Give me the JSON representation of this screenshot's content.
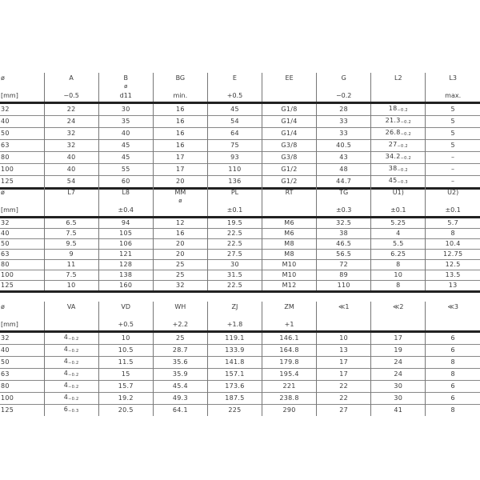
{
  "tables": [
    {
      "headers": [
        {
          "name": "ø",
          "sym": "",
          "tol": "[mm]"
        },
        {
          "name": "A",
          "sym": "",
          "tol": "−0.5"
        },
        {
          "name": "B",
          "sym": "ø",
          "tol": "d11"
        },
        {
          "name": "BG",
          "sym": "",
          "tol": "min."
        },
        {
          "name": "E",
          "sym": "",
          "tol": "+0.5"
        },
        {
          "name": "EE",
          "sym": "",
          "tol": ""
        },
        {
          "name": "G",
          "sym": "",
          "tol": "−0.2"
        },
        {
          "name": "L2",
          "sym": "",
          "tol": ""
        },
        {
          "name": "L3",
          "sym": "",
          "tol": "max."
        }
      ],
      "rows": [
        [
          "32",
          "22",
          "30",
          "16",
          "45",
          "G1/8",
          "28",
          {
            "v": "18",
            "t": "−0.2"
          },
          "5"
        ],
        [
          "40",
          "24",
          "35",
          "16",
          "54",
          "G1/4",
          "33",
          {
            "v": "21.3",
            "t": "−0.2"
          },
          "5"
        ],
        [
          "50",
          "32",
          "40",
          "16",
          "64",
          "G1/4",
          "33",
          {
            "v": "26.8",
            "t": "−0.2"
          },
          "5"
        ],
        [
          "63",
          "32",
          "45",
          "16",
          "75",
          "G3/8",
          "40.5",
          {
            "v": "27",
            "t": "−0.2"
          },
          "5"
        ],
        [
          "80",
          "40",
          "45",
          "17",
          "93",
          "G3/8",
          "43",
          {
            "v": "34.2",
            "t": "−0.2"
          },
          "–"
        ],
        [
          "100",
          "40",
          "55",
          "17",
          "110",
          "G1/2",
          "48",
          {
            "v": "38",
            "t": "−0.2"
          },
          "–"
        ],
        [
          "125",
          "54",
          "60",
          "20",
          "136",
          "G1/2",
          "44.7",
          {
            "v": "45",
            "t": "−0.3"
          },
          "–"
        ]
      ]
    },
    {
      "headers": [
        {
          "name": "ø",
          "sym": "",
          "tol": "[mm]"
        },
        {
          "name": "L7",
          "sym": "",
          "tol": ""
        },
        {
          "name": "L8",
          "sym": "",
          "tol": "±0.4"
        },
        {
          "name": "MM",
          "sym": "ø",
          "tol": ""
        },
        {
          "name": "PL",
          "sym": "",
          "tol": "±0.1"
        },
        {
          "name": "RT",
          "sym": "",
          "tol": ""
        },
        {
          "name": "TG",
          "sym": "",
          "tol": "±0.3"
        },
        {
          "name": "U1)",
          "sym": "",
          "tol": "±0.1"
        },
        {
          "name": "U2)",
          "sym": "",
          "tol": "±0.1"
        }
      ],
      "rows": [
        [
          "32",
          "6.5",
          "94",
          "12",
          "19.5",
          "M6",
          "32.5",
          "5.25",
          "5.7"
        ],
        [
          "40",
          "7.5",
          "105",
          "16",
          "22.5",
          "M6",
          "38",
          "4",
          "8"
        ],
        [
          "50",
          "9.5",
          "106",
          "20",
          "22.5",
          "M8",
          "46.5",
          "5.5",
          "10.4"
        ],
        [
          "63",
          "9",
          "121",
          "20",
          "27.5",
          "M8",
          "56.5",
          "6.25",
          "12.75"
        ],
        [
          "80",
          "11",
          "128",
          "25",
          "30",
          "M10",
          "72",
          "8",
          "12.5"
        ],
        [
          "100",
          "7.5",
          "138",
          "25",
          "31.5",
          "M10",
          "89",
          "10",
          "13.5"
        ],
        [
          "125",
          "10",
          "160",
          "32",
          "22.5",
          "M12",
          "110",
          "8",
          "13"
        ]
      ]
    },
    {
      "headers": [
        {
          "name": "ø",
          "sym": "",
          "tol": "[mm]"
        },
        {
          "name": "VA",
          "sym": "",
          "tol": ""
        },
        {
          "name": "VD",
          "sym": "",
          "tol": "+0.5"
        },
        {
          "name": "WH",
          "sym": "",
          "tol": "+2.2"
        },
        {
          "name": "ZJ",
          "sym": "",
          "tol": "+1.8"
        },
        {
          "name": "ZM",
          "sym": "",
          "tol": "+1"
        },
        {
          "name": "≪1",
          "sym": "",
          "tol": ""
        },
        {
          "name": "≪2",
          "sym": "",
          "tol": ""
        },
        {
          "name": "≪3",
          "sym": "",
          "tol": ""
        }
      ],
      "rows": [
        [
          "32",
          {
            "v": "4",
            "t": "−0.2"
          },
          "10",
          "25",
          "119.1",
          "146.1",
          "10",
          "17",
          "6"
        ],
        [
          "40",
          {
            "v": "4",
            "t": "−0.2"
          },
          "10.5",
          "28.7",
          "133.9",
          "164.8",
          "13",
          "19",
          "6"
        ],
        [
          "50",
          {
            "v": "4",
            "t": "−0.2"
          },
          "11.5",
          "35.6",
          "141.8",
          "179.8",
          "17",
          "24",
          "8"
        ],
        [
          "63",
          {
            "v": "4",
            "t": "−0.2"
          },
          "15",
          "35.9",
          "157.1",
          "195.4",
          "17",
          "24",
          "8"
        ],
        [
          "80",
          {
            "v": "4",
            "t": "−0.2"
          },
          "15.7",
          "45.4",
          "173.6",
          "221",
          "22",
          "30",
          "6"
        ],
        [
          "100",
          {
            "v": "4",
            "t": "−0.2"
          },
          "19.2",
          "49.3",
          "187.5",
          "238.8",
          "22",
          "30",
          "6"
        ],
        [
          "125",
          {
            "v": "6",
            "t": "−0.3"
          },
          "20.5",
          "64.1",
          "225",
          "290",
          "27",
          "41",
          "8"
        ]
      ]
    }
  ]
}
